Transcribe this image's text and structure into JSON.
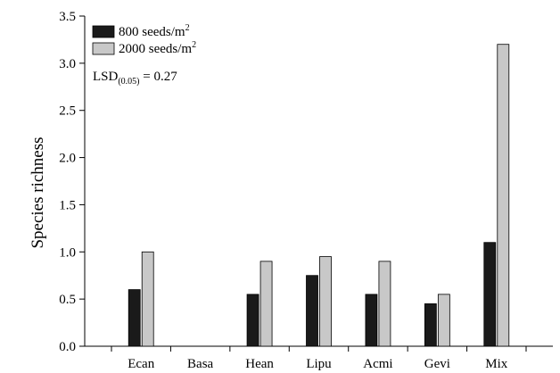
{
  "chart_data": {
    "type": "bar",
    "ylabel": "Species richness",
    "xlabel": "",
    "ylim": [
      0,
      3.5
    ],
    "yticks": [
      "0.0",
      "0.5",
      "1.0",
      "1.5",
      "2.0",
      "2.5",
      "3.0",
      "3.5"
    ],
    "categories": [
      "Ecan",
      "Basa",
      "Hean",
      "Lipu",
      "Acmi",
      "Gevi",
      "Mix"
    ],
    "series": [
      {
        "name_main": "800 seeds/m",
        "name_sup": "2",
        "color": "#1a1a1a",
        "values": [
          0.6,
          0,
          0.55,
          0.75,
          0.55,
          0.45,
          1.1
        ]
      },
      {
        "name_main": "2000 seeds/m",
        "name_sup": "2",
        "color": "#c8c8c8",
        "values": [
          1.0,
          0,
          0.9,
          0.95,
          0.9,
          0.55,
          3.2
        ]
      }
    ],
    "annotation": {
      "main": "LSD",
      "sub": "(0.05)",
      "rest": " = 0.27"
    },
    "legend_position": "top-left",
    "grid": false
  }
}
